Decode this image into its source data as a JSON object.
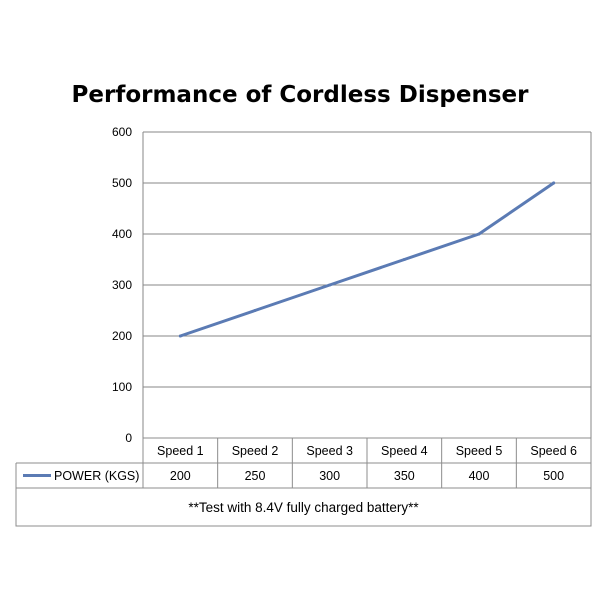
{
  "chart_data": {
    "type": "line",
    "title": "Performance of Cordless Dispenser",
    "categories": [
      "Speed 1",
      "Speed 2",
      "Speed 3",
      "Speed 4",
      "Speed 5",
      "Speed 6"
    ],
    "series": [
      {
        "name": "POWER (KGS)",
        "values": [
          200,
          250,
          300,
          350,
          400,
          500
        ],
        "color": "#5b7bb4"
      }
    ],
    "yticks": [
      0,
      100,
      200,
      300,
      400,
      500,
      600
    ],
    "ylim": [
      0,
      600
    ],
    "grid": true,
    "legend": "data-table",
    "data_table": true,
    "note": "**Test with 8.4V fully charged battery**"
  },
  "colors": {
    "line": "#5b7bb4",
    "grid": "#878787",
    "border": "#8c8c8c"
  }
}
